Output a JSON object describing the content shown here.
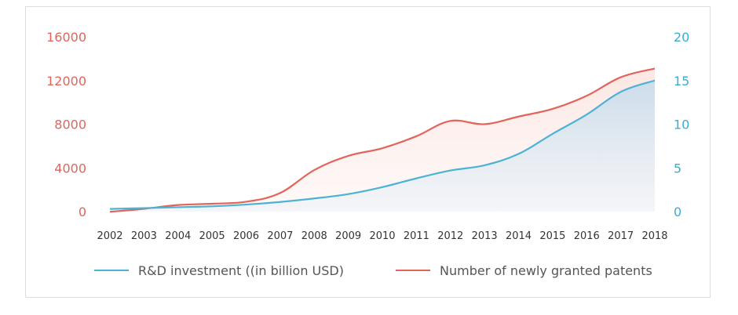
{
  "chart_data": {
    "type": "line",
    "x": [
      "2002",
      "2003",
      "2004",
      "2005",
      "2006",
      "2007",
      "2008",
      "2009",
      "2010",
      "2011",
      "2012",
      "2013",
      "2014",
      "2015",
      "2016",
      "2017",
      "2018"
    ],
    "y_left": {
      "ticks": [
        0,
        4000,
        8000,
        12000,
        16000
      ],
      "ylim": [
        0,
        16000
      ]
    },
    "y_right": {
      "ticks": [
        0,
        5,
        10,
        15,
        20
      ],
      "ylim": [
        0,
        20
      ]
    },
    "series": [
      {
        "name": "R&D investment ((in billion USD)",
        "axis": "right",
        "color": "#4cb3d4",
        "values": [
          0.3,
          0.4,
          0.5,
          0.6,
          0.8,
          1.1,
          1.5,
          2.0,
          2.8,
          3.8,
          4.7,
          5.3,
          6.6,
          8.9,
          11.1,
          13.7,
          15.0
        ]
      },
      {
        "name": "Number of newly granted patents",
        "axis": "left",
        "color": "#e2645a",
        "values": [
          -20,
          250,
          600,
          720,
          900,
          1700,
          3800,
          5100,
          5800,
          6900,
          8300,
          8000,
          8700,
          9400,
          10600,
          12300,
          13100
        ]
      }
    ],
    "grid": false,
    "legend_position": "bottom"
  },
  "colors": {
    "left_axis": "#e2645a",
    "right_axis": "#3aaed0",
    "x_axis": "#333333"
  }
}
